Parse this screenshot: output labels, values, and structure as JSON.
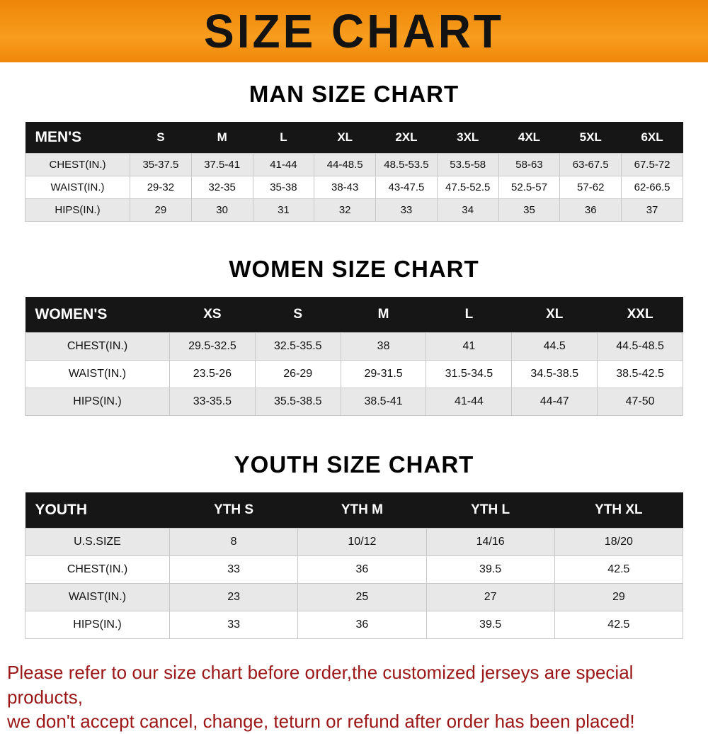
{
  "banner": {
    "title": "SIZE CHART"
  },
  "colors": {
    "banner_orange_top": "#ee8507",
    "banner_orange_bottom": "#f89d1e",
    "table_header_black": "#161616",
    "row_stripe_gray": "#e8e8e8",
    "note_red": "#9b1616"
  },
  "chart_data": [
    {
      "type": "table",
      "title": "MAN SIZE CHART",
      "header_label": "MEN'S",
      "columns": [
        "S",
        "M",
        "L",
        "XL",
        "2XL",
        "3XL",
        "4XL",
        "5XL",
        "6XL"
      ],
      "rows": [
        {
          "label": "CHEST(IN.)",
          "values": [
            "35-37.5",
            "37.5-41",
            "41-44",
            "44-48.5",
            "48.5-53.5",
            "53.5-58",
            "58-63",
            "63-67.5",
            "67.5-72"
          ]
        },
        {
          "label": "WAIST(IN.)",
          "values": [
            "29-32",
            "32-35",
            "35-38",
            "38-43",
            "43-47.5",
            "47.5-52.5",
            "52.5-57",
            "57-62",
            "62-66.5"
          ]
        },
        {
          "label": "HIPS(IN.)",
          "values": [
            "29",
            "30",
            "31",
            "32",
            "33",
            "34",
            "35",
            "36",
            "37"
          ]
        }
      ]
    },
    {
      "type": "table",
      "title": "WOMEN SIZE CHART",
      "header_label": "WOMEN'S",
      "columns": [
        "XS",
        "S",
        "M",
        "L",
        "XL",
        "XXL"
      ],
      "rows": [
        {
          "label": "CHEST(IN.)",
          "values": [
            "29.5-32.5",
            "32.5-35.5",
            "38",
            "41",
            "44.5",
            "44.5-48.5"
          ]
        },
        {
          "label": "WAIST(IN.)",
          "values": [
            "23.5-26",
            "26-29",
            "29-31.5",
            "31.5-34.5",
            "34.5-38.5",
            "38.5-42.5"
          ]
        },
        {
          "label": "HIPS(IN.)",
          "values": [
            "33-35.5",
            "35.5-38.5",
            "38.5-41",
            "41-44",
            "44-47",
            "47-50"
          ]
        }
      ]
    },
    {
      "type": "table",
      "title": "YOUTH SIZE CHART",
      "header_label": "YOUTH",
      "columns": [
        "YTH S",
        "YTH M",
        "YTH L",
        "YTH XL"
      ],
      "rows": [
        {
          "label": "U.S.SIZE",
          "values": [
            "8",
            "10/12",
            "14/16",
            "18/20"
          ]
        },
        {
          "label": "CHEST(IN.)",
          "values": [
            "33",
            "36",
            "39.5",
            "42.5"
          ]
        },
        {
          "label": "WAIST(IN.)",
          "values": [
            "23",
            "25",
            "27",
            "29"
          ]
        },
        {
          "label": "HIPS(IN.)",
          "values": [
            "33",
            "36",
            "39.5",
            "42.5"
          ]
        }
      ]
    }
  ],
  "note": {
    "line1": "Please refer to our size chart before order,the customized jerseys are special products,",
    "line2": "we don't accept cancel, change, teturn or refund after order has been placed!"
  }
}
